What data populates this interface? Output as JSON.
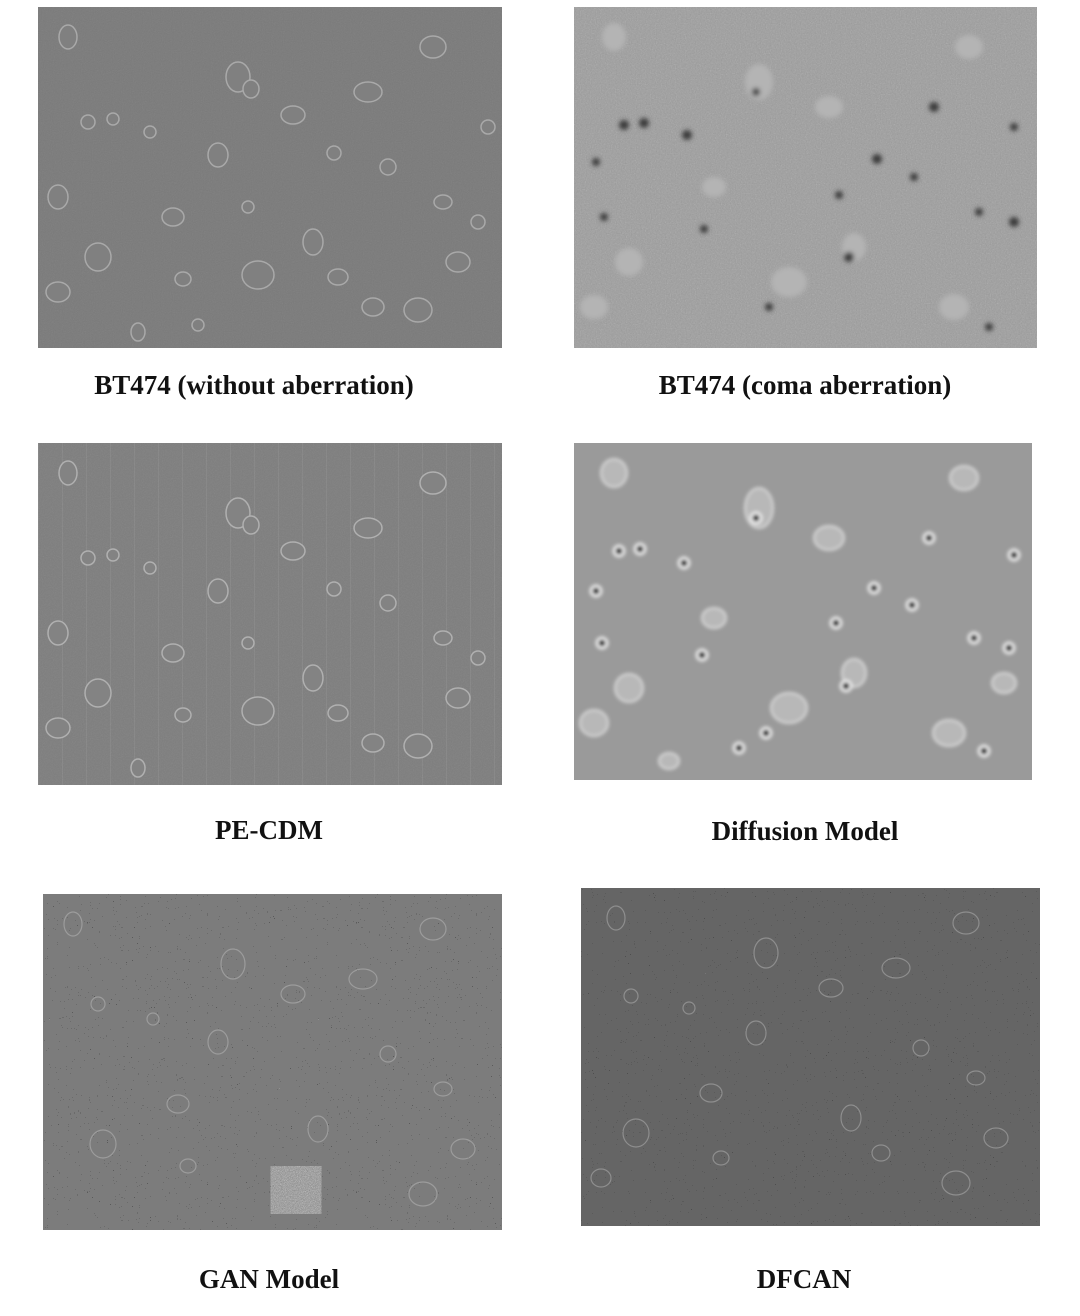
{
  "figure": {
    "panels": [
      {
        "id": "bt474-clean",
        "caption": "BT474 (without aberration)"
      },
      {
        "id": "bt474-coma",
        "caption": "BT474 (coma aberration)"
      },
      {
        "id": "pe-cdm",
        "caption": "PE-CDM"
      },
      {
        "id": "diffusion",
        "caption": "Diffusion Model"
      },
      {
        "id": "gan",
        "caption": "GAN Model"
      },
      {
        "id": "dfcan",
        "caption": "DFCAN"
      }
    ]
  }
}
